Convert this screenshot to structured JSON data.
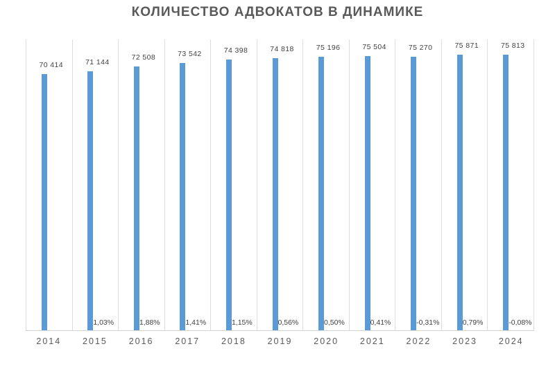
{
  "chart_data": {
    "type": "bar",
    "title": "КОЛИЧЕСТВО АДВОКАТОВ В ДИНАМИКЕ",
    "categories": [
      "2014",
      "2015",
      "2016",
      "2017",
      "2018",
      "2019",
      "2020",
      "2021",
      "2022",
      "2023",
      "2024"
    ],
    "series": [
      {
        "name": "lawyers_count",
        "values": [
          70414,
          71144,
          72508,
          73542,
          74398,
          74818,
          75196,
          75504,
          75270,
          75871,
          75813
        ],
        "labels": [
          "70 414",
          "71 144",
          "72 508",
          "73 542",
          "74 398",
          "74 818",
          "75 196",
          "75 504",
          "75 270",
          "75 871",
          "75 813"
        ]
      },
      {
        "name": "percent_change",
        "values": [
          null,
          1.03,
          1.88,
          1.41,
          1.15,
          0.56,
          0.5,
          0.41,
          -0.31,
          0.79,
          -0.08
        ],
        "labels": [
          "",
          "1,03%",
          "1,88%",
          "1,41%",
          "1,15%",
          "0,56%",
          "0,50%",
          "0,41%",
          "-0,31%",
          "0,79%",
          "-0,08%"
        ]
      }
    ],
    "xlabel": "",
    "ylabel": "",
    "ylim": [
      0,
      80000
    ],
    "grid": "vertical category boundary lines",
    "legend_position": "none",
    "value_labels_position": "above bar ends",
    "pct_labels_position": "right of bar, near baseline"
  },
  "colors": {
    "bar": "#5b9bd5",
    "title": "#595959",
    "value_label": "#404040",
    "pct_label": "#404040",
    "year_label": "#595959",
    "gridline": "#dcdcdc",
    "axis_line": "#d2d2d2",
    "background": "#ffffff"
  }
}
